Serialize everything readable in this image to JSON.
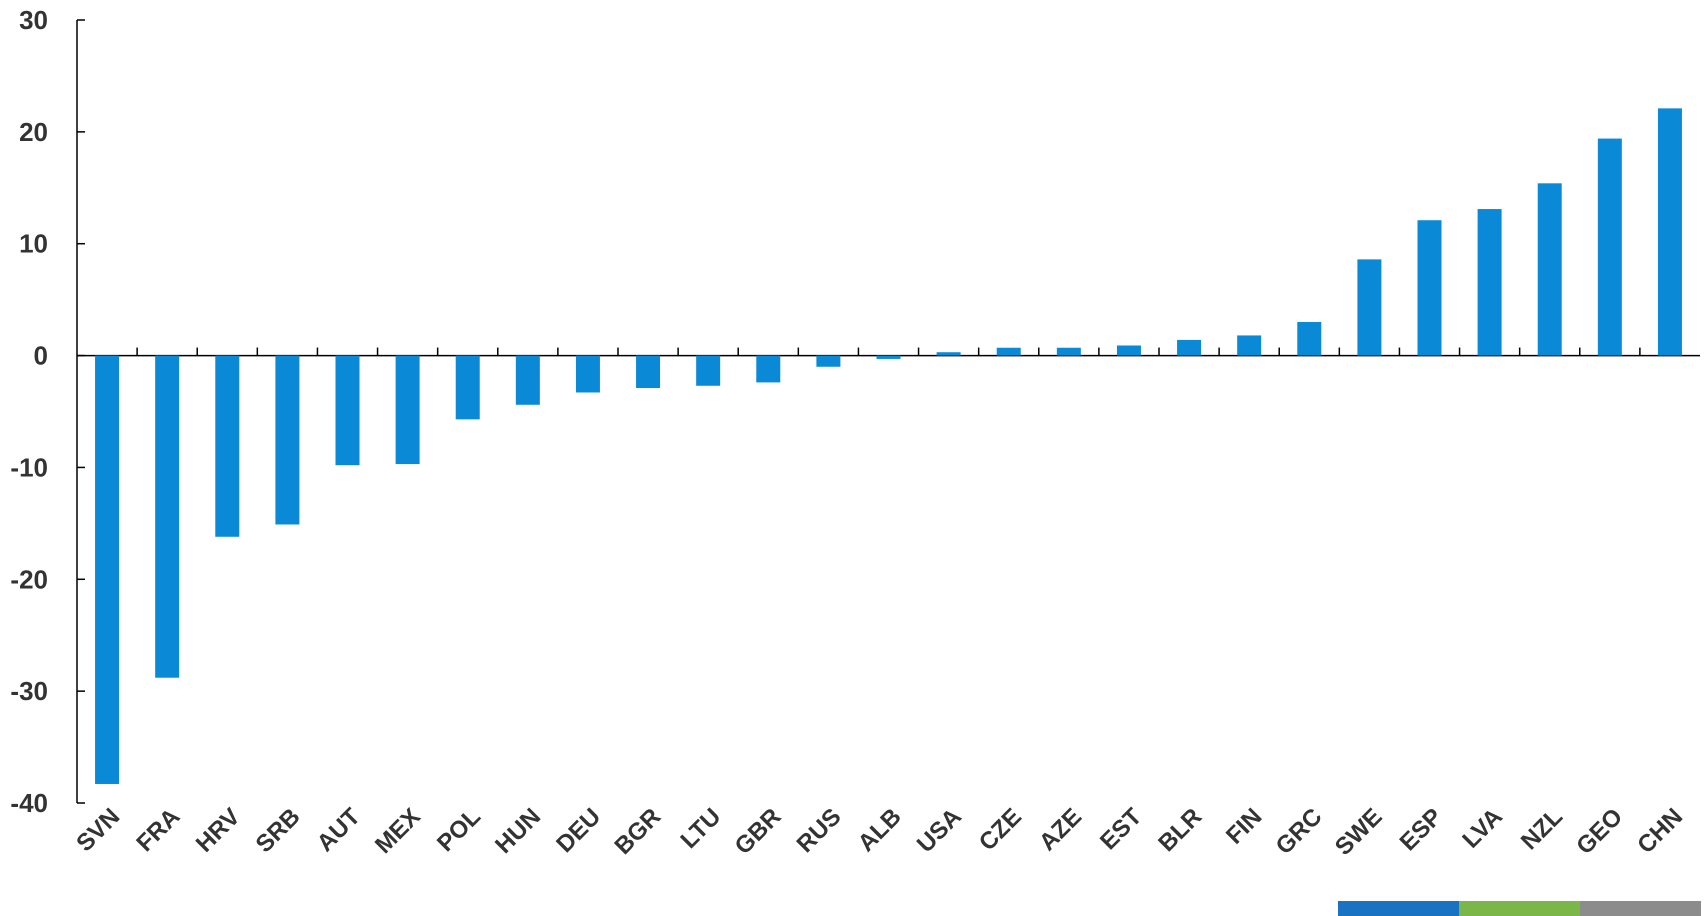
{
  "chart_data": {
    "type": "bar",
    "title": "",
    "xlabel": "",
    "ylabel": "",
    "ylim": [
      -40,
      30
    ],
    "yticks": [
      30,
      20,
      10,
      0,
      -10,
      -20,
      -30,
      -40
    ],
    "ytick_labels": [
      "30",
      "20",
      "10",
      "0",
      "-10",
      "-20",
      "-30",
      "-40"
    ],
    "grid": false,
    "legend": "none",
    "bar_color": "#0a8ad6",
    "categories": [
      "SVN",
      "FRA",
      "HRV",
      "SRB",
      "AUT",
      "MEX",
      "POL",
      "HUN",
      "DEU",
      "BGR",
      "LTU",
      "GBR",
      "RUS",
      "ALB",
      "USA",
      "CZE",
      "AZE",
      "EST",
      "BLR",
      "FIN",
      "GRC",
      "SWE",
      "ESP",
      "LVA",
      "NZL",
      "GEO",
      "CHN"
    ],
    "values": [
      -38.3,
      -28.8,
      -16.2,
      -15.1,
      -9.8,
      -9.7,
      -5.7,
      -4.4,
      -3.3,
      -2.9,
      -2.7,
      -2.4,
      -1.0,
      -0.3,
      0.3,
      0.7,
      0.7,
      0.9,
      1.4,
      1.8,
      3.0,
      8.6,
      12.1,
      13.1,
      15.4,
      19.4,
      22.1
    ]
  },
  "footer_colors": [
    "#1a73c2",
    "#7ab648",
    "#8c8c8c"
  ]
}
